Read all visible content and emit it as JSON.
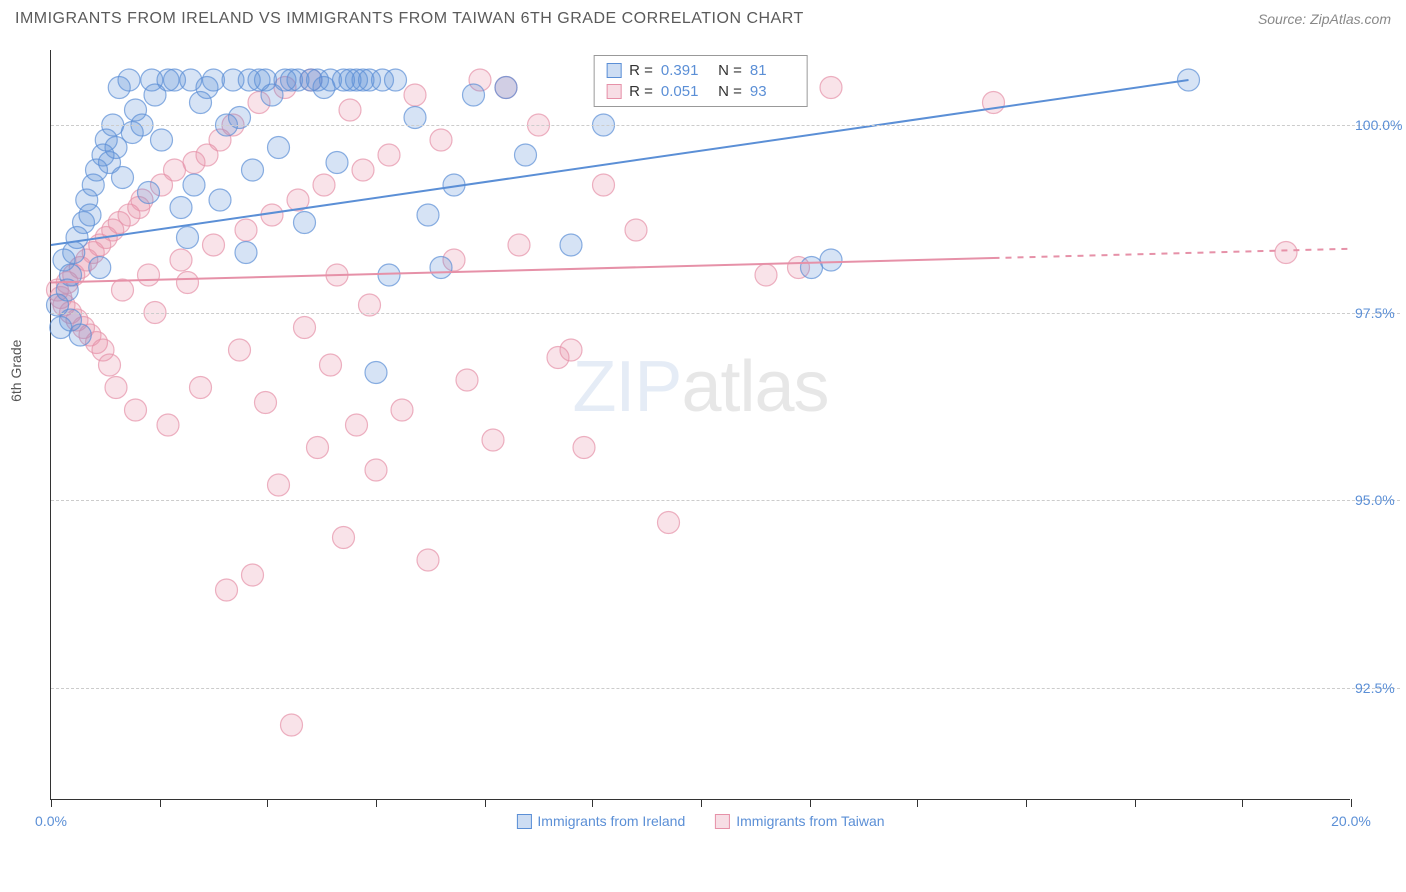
{
  "header": {
    "title": "IMMIGRANTS FROM IRELAND VS IMMIGRANTS FROM TAIWAN 6TH GRADE CORRELATION CHART",
    "source": "Source: ZipAtlas.com"
  },
  "chart": {
    "type": "scatter",
    "ylabel": "6th Grade",
    "xlim": [
      0,
      20
    ],
    "ylim": [
      91,
      101
    ],
    "xtick_labels": [
      {
        "pos": 0,
        "label": "0.0%"
      },
      {
        "pos": 20,
        "label": "20.0%"
      }
    ],
    "xticks_minor": [
      0,
      1.67,
      3.33,
      5,
      6.67,
      8.33,
      10,
      11.67,
      13.33,
      15,
      16.67,
      18.33,
      20
    ],
    "ytick_labels": [
      {
        "pos": 92.5,
        "label": "92.5%"
      },
      {
        "pos": 95.0,
        "label": "95.0%"
      },
      {
        "pos": 97.5,
        "label": "97.5%"
      },
      {
        "pos": 100.0,
        "label": "100.0%"
      }
    ],
    "grid_color": "#cccccc",
    "background_color": "#ffffff",
    "axis_color": "#333333",
    "marker_radius": 11,
    "marker_fill_opacity": 0.25,
    "marker_stroke_opacity": 0.7,
    "marker_stroke_width": 1.2,
    "line_width": 2,
    "watermark": "ZIPatlas",
    "series": [
      {
        "name": "Immigrants from Ireland",
        "color": "#5b8fd6",
        "fill": "rgba(91,143,214,0.25)",
        "stroke": "rgba(91,143,214,0.7)",
        "R": "0.391",
        "N": "81",
        "trend": {
          "x1": 0,
          "y1": 98.4,
          "x2": 17.5,
          "y2": 100.6,
          "dash_from_x": null
        },
        "points": [
          [
            0.1,
            97.6
          ],
          [
            0.15,
            97.3
          ],
          [
            0.2,
            98.2
          ],
          [
            0.25,
            97.8
          ],
          [
            0.3,
            98.0
          ],
          [
            0.3,
            97.4
          ],
          [
            0.35,
            98.3
          ],
          [
            0.4,
            98.5
          ],
          [
            0.45,
            97.2
          ],
          [
            0.5,
            98.7
          ],
          [
            0.55,
            99.0
          ],
          [
            0.6,
            98.8
          ],
          [
            0.65,
            99.2
          ],
          [
            0.7,
            99.4
          ],
          [
            0.75,
            98.1
          ],
          [
            0.8,
            99.6
          ],
          [
            0.85,
            99.8
          ],
          [
            0.9,
            99.5
          ],
          [
            0.95,
            100.0
          ],
          [
            1.0,
            99.7
          ],
          [
            1.05,
            100.5
          ],
          [
            1.1,
            99.3
          ],
          [
            1.2,
            100.6
          ],
          [
            1.25,
            99.9
          ],
          [
            1.3,
            100.2
          ],
          [
            1.4,
            100.0
          ],
          [
            1.5,
            99.1
          ],
          [
            1.55,
            100.6
          ],
          [
            1.6,
            100.4
          ],
          [
            1.7,
            99.8
          ],
          [
            1.8,
            100.6
          ],
          [
            1.9,
            100.6
          ],
          [
            2.0,
            98.9
          ],
          [
            2.1,
            98.5
          ],
          [
            2.15,
            100.6
          ],
          [
            2.2,
            99.2
          ],
          [
            2.3,
            100.3
          ],
          [
            2.4,
            100.5
          ],
          [
            2.5,
            100.6
          ],
          [
            2.6,
            99.0
          ],
          [
            2.7,
            100.0
          ],
          [
            2.8,
            100.6
          ],
          [
            2.9,
            100.1
          ],
          [
            3.0,
            98.3
          ],
          [
            3.05,
            100.6
          ],
          [
            3.1,
            99.4
          ],
          [
            3.2,
            100.6
          ],
          [
            3.3,
            100.6
          ],
          [
            3.4,
            100.4
          ],
          [
            3.5,
            99.7
          ],
          [
            3.6,
            100.6
          ],
          [
            3.7,
            100.6
          ],
          [
            3.8,
            100.6
          ],
          [
            3.9,
            98.7
          ],
          [
            4.0,
            100.6
          ],
          [
            4.1,
            100.6
          ],
          [
            4.2,
            100.5
          ],
          [
            4.3,
            100.6
          ],
          [
            4.4,
            99.5
          ],
          [
            4.5,
            100.6
          ],
          [
            4.6,
            100.6
          ],
          [
            4.7,
            100.6
          ],
          [
            4.8,
            100.6
          ],
          [
            4.9,
            100.6
          ],
          [
            5.0,
            96.7
          ],
          [
            5.1,
            100.6
          ],
          [
            5.2,
            98.0
          ],
          [
            5.3,
            100.6
          ],
          [
            5.6,
            100.1
          ],
          [
            5.8,
            98.8
          ],
          [
            6.0,
            98.1
          ],
          [
            6.2,
            99.2
          ],
          [
            6.5,
            100.4
          ],
          [
            7.0,
            100.5
          ],
          [
            7.3,
            99.6
          ],
          [
            8.0,
            98.4
          ],
          [
            8.5,
            100.0
          ],
          [
            11.7,
            98.1
          ],
          [
            12.0,
            98.2
          ],
          [
            17.5,
            100.6
          ]
        ]
      },
      {
        "name": "Immigrants from Taiwan",
        "color": "#e691a8",
        "fill": "rgba(230,145,168,0.25)",
        "stroke": "rgba(230,145,168,0.7)",
        "R": "0.051",
        "N": "93",
        "trend": {
          "x1": 0,
          "y1": 97.9,
          "x2": 20,
          "y2": 98.35,
          "dash_from_x": 14.5
        },
        "points": [
          [
            0.1,
            97.8
          ],
          [
            0.15,
            97.7
          ],
          [
            0.2,
            97.6
          ],
          [
            0.25,
            97.9
          ],
          [
            0.3,
            97.5
          ],
          [
            0.35,
            98.0
          ],
          [
            0.4,
            97.4
          ],
          [
            0.45,
            98.1
          ],
          [
            0.5,
            97.3
          ],
          [
            0.55,
            98.2
          ],
          [
            0.6,
            97.2
          ],
          [
            0.65,
            98.3
          ],
          [
            0.7,
            97.1
          ],
          [
            0.75,
            98.4
          ],
          [
            0.8,
            97.0
          ],
          [
            0.85,
            98.5
          ],
          [
            0.9,
            96.8
          ],
          [
            0.95,
            98.6
          ],
          [
            1.0,
            96.5
          ],
          [
            1.05,
            98.7
          ],
          [
            1.1,
            97.8
          ],
          [
            1.2,
            98.8
          ],
          [
            1.3,
            96.2
          ],
          [
            1.35,
            98.9
          ],
          [
            1.4,
            99.0
          ],
          [
            1.5,
            98.0
          ],
          [
            1.6,
            97.5
          ],
          [
            1.7,
            99.2
          ],
          [
            1.8,
            96.0
          ],
          [
            1.9,
            99.4
          ],
          [
            2.0,
            98.2
          ],
          [
            2.1,
            97.9
          ],
          [
            2.2,
            99.5
          ],
          [
            2.3,
            96.5
          ],
          [
            2.4,
            99.6
          ],
          [
            2.5,
            98.4
          ],
          [
            2.6,
            99.8
          ],
          [
            2.7,
            93.8
          ],
          [
            2.8,
            100.0
          ],
          [
            2.9,
            97.0
          ],
          [
            3.0,
            98.6
          ],
          [
            3.1,
            94.0
          ],
          [
            3.2,
            100.3
          ],
          [
            3.3,
            96.3
          ],
          [
            3.4,
            98.8
          ],
          [
            3.5,
            95.2
          ],
          [
            3.6,
            100.5
          ],
          [
            3.7,
            92.0
          ],
          [
            3.8,
            99.0
          ],
          [
            3.9,
            97.3
          ],
          [
            4.0,
            100.6
          ],
          [
            4.1,
            95.7
          ],
          [
            4.2,
            99.2
          ],
          [
            4.3,
            96.8
          ],
          [
            4.4,
            98.0
          ],
          [
            4.5,
            94.5
          ],
          [
            4.6,
            100.2
          ],
          [
            4.7,
            96.0
          ],
          [
            4.8,
            99.4
          ],
          [
            4.9,
            97.6
          ],
          [
            5.0,
            95.4
          ],
          [
            5.2,
            99.6
          ],
          [
            5.4,
            96.2
          ],
          [
            5.6,
            100.4
          ],
          [
            5.8,
            94.2
          ],
          [
            6.0,
            99.8
          ],
          [
            6.2,
            98.2
          ],
          [
            6.4,
            96.6
          ],
          [
            6.6,
            100.6
          ],
          [
            6.8,
            95.8
          ],
          [
            7.0,
            100.5
          ],
          [
            7.2,
            98.4
          ],
          [
            7.5,
            100.0
          ],
          [
            7.8,
            96.9
          ],
          [
            8.0,
            97.0
          ],
          [
            8.2,
            95.7
          ],
          [
            8.5,
            99.2
          ],
          [
            9.0,
            98.6
          ],
          [
            9.5,
            94.7
          ],
          [
            10.0,
            100.4
          ],
          [
            11.0,
            98.0
          ],
          [
            11.5,
            98.1
          ],
          [
            12.0,
            100.5
          ],
          [
            14.5,
            100.3
          ],
          [
            19.0,
            98.3
          ]
        ]
      }
    ],
    "legend_labels": {
      "ireland": "Immigrants from Ireland",
      "taiwan": "Immigrants from Taiwan"
    }
  }
}
